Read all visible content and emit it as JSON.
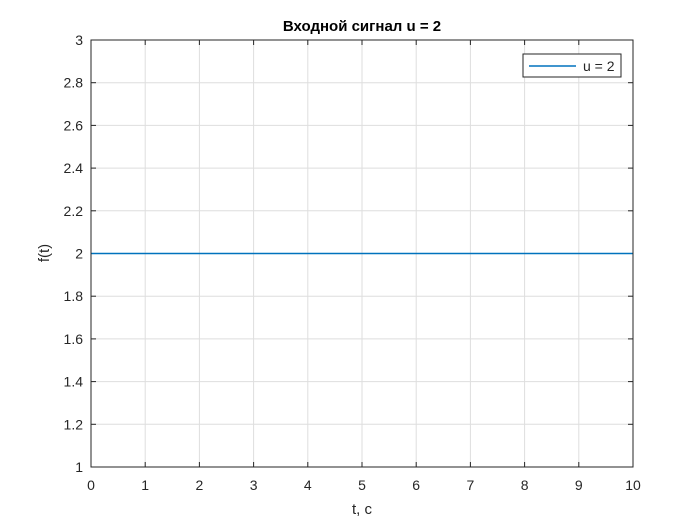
{
  "chart_data": {
    "type": "line",
    "title": "Входной сигнал u = 2",
    "xlabel": "t, c",
    "ylabel": "f(t)",
    "xlim": [
      0,
      10
    ],
    "ylim": [
      1,
      3
    ],
    "xticks": [
      0,
      1,
      2,
      3,
      4,
      5,
      6,
      7,
      8,
      9,
      10
    ],
    "yticks": [
      1,
      1.2,
      1.4,
      1.6,
      1.8,
      2,
      2.2,
      2.4,
      2.6,
      2.8,
      3
    ],
    "ytick_labels": [
      "1",
      "1.2",
      "1.4",
      "1.6",
      "1.8",
      "2",
      "2.2",
      "2.4",
      "2.6",
      "2.8",
      "3"
    ],
    "grid": true,
    "legend_position": "top-right",
    "series": [
      {
        "name": "u = 2",
        "color": "#0072bd",
        "x": [
          0,
          10
        ],
        "y": [
          2,
          2
        ]
      }
    ]
  }
}
